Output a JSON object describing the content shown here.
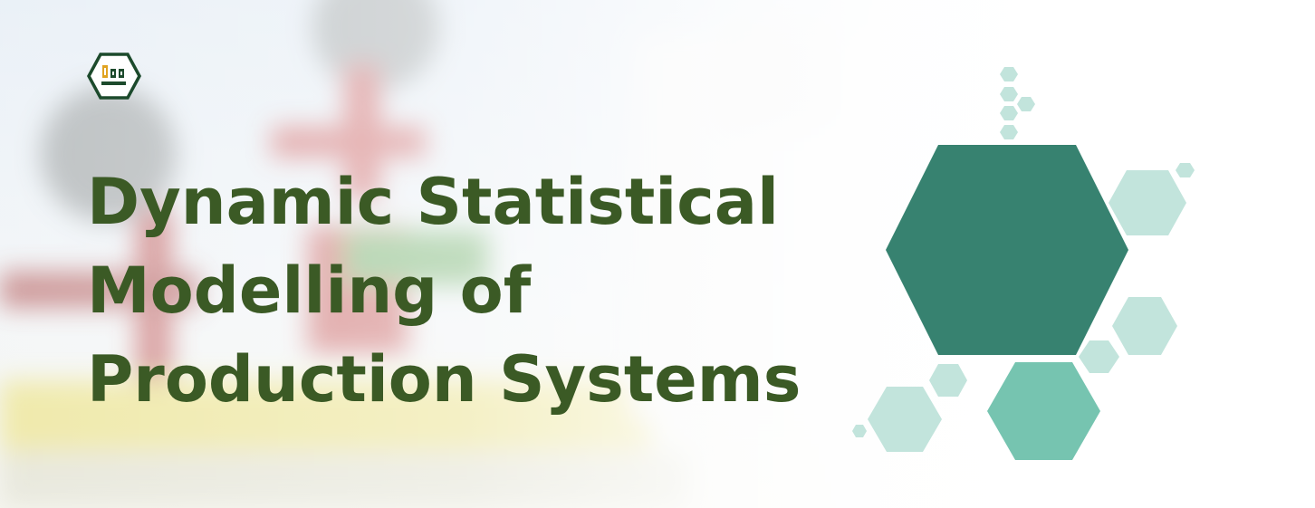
{
  "title_lines": [
    "Dynamic Statistical",
    "Modelling of",
    "Production Systems"
  ],
  "logo_icon": "factory-hexagon-logo",
  "colors": {
    "title": "#3b5a25",
    "hex_dark": "#378270",
    "hex_medium": "#76c4b0",
    "hex_light": "#c2e4dc",
    "logo_outline": "#1c4a2c",
    "logo_accent": "#e0a321"
  }
}
